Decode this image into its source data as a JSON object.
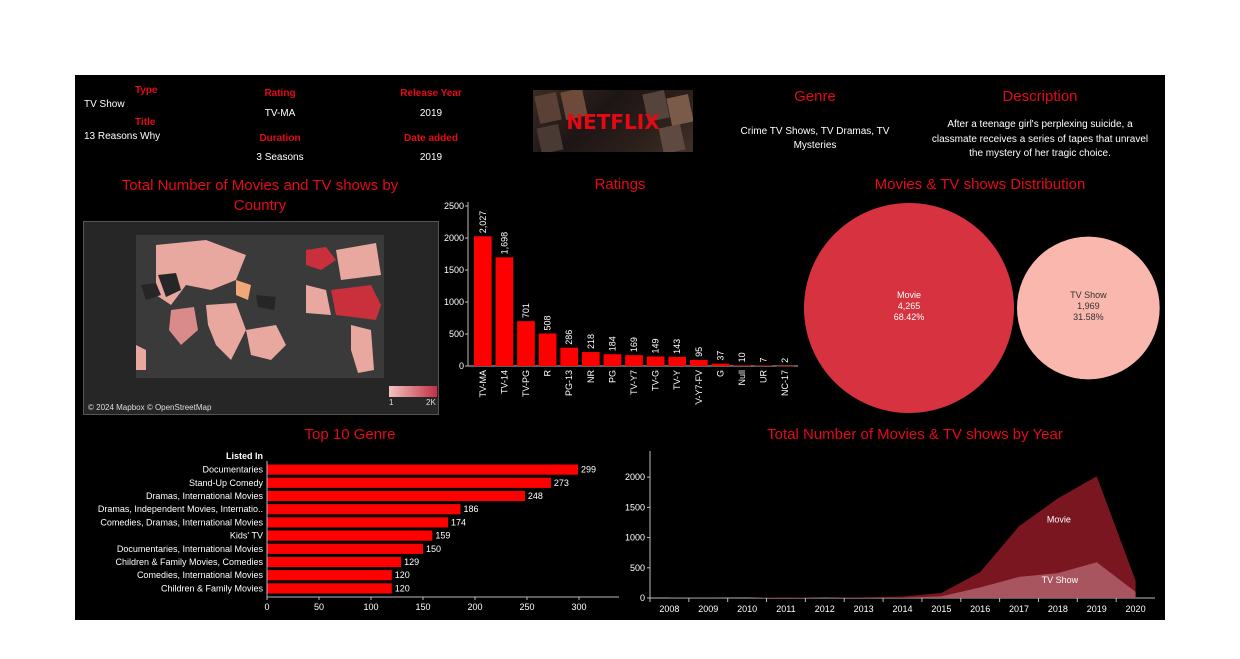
{
  "details": {
    "type_label": "Type",
    "type_value": "TV Show",
    "title_label": "Title",
    "title_value": "13 Reasons Why",
    "rating_label": "Rating",
    "rating_value": "TV-MA",
    "duration_label": "Duration",
    "duration_value": "3 Seasons",
    "release_label": "Release Year",
    "release_value": "2019",
    "date_added_label": "Date added",
    "date_added_value": "2019",
    "logo_text": "NETFLIX",
    "genre_label": "Genre",
    "genre_value": "Crime TV Shows, TV Dramas, TV Mysteries",
    "description_label": "Description",
    "description_value": "After a teenage girl's perplexing suicide, a classmate receives a series of tapes that unravel the mystery of her tragic choice."
  },
  "map": {
    "title": "Total Number of Movies and TV shows by Country",
    "credit": "© 2024 Mapbox © OpenStreetMap",
    "legend_min": "1",
    "legend_max": "2K"
  },
  "colors": {
    "accent": "#e5091a",
    "bar": "#ff0000",
    "movie": "#d7323f",
    "tvshow": "#f9b7ae",
    "movie_area": "#7a1620",
    "tv_area": "#a85560"
  },
  "chart_data": [
    {
      "type": "bar",
      "title": "Ratings",
      "categories": [
        "TV-MA",
        "TV-14",
        "TV-PG",
        "R",
        "PG-13",
        "NR",
        "PG",
        "TV-Y7",
        "TV-G",
        "TV-Y",
        "TV-Y7-FV",
        "G",
        "Null",
        "UR",
        "NC-17"
      ],
      "values": [
        2027,
        1698,
        701,
        508,
        286,
        218,
        184,
        169,
        149,
        143,
        95,
        37,
        10,
        7,
        2
      ],
      "value_labels": [
        "2,027",
        "1,698",
        "701",
        "508",
        "286",
        "218",
        "184",
        "169",
        "149",
        "143",
        "95",
        "37",
        "10",
        "7",
        "2"
      ],
      "ylim": [
        0,
        2500
      ],
      "yticks": [
        0,
        500,
        1000,
        1500,
        2000,
        2500
      ]
    },
    {
      "type": "pie",
      "title": "Movies & TV shows Distribution",
      "series": [
        {
          "name": "Movie",
          "value_label": "4,265",
          "percent_label": "68.42%",
          "value": 4265
        },
        {
          "name": "TV Show",
          "value_label": "1,969",
          "percent_label": "31.58%",
          "value": 1969
        }
      ]
    },
    {
      "type": "bar",
      "title": "Top 10 Genre",
      "ylabel": "Listed In",
      "categories": [
        "Documentaries",
        "Stand-Up Comedy",
        "Dramas, International Movies",
        "Dramas, Independent Movies, Internatio..",
        "Comedies, Dramas, International Movies",
        "Kids' TV",
        "Documentaries, International Movies",
        "Children & Family Movies, Comedies",
        "Comedies, International Movies",
        "Children & Family Movies"
      ],
      "values": [
        299,
        273,
        248,
        186,
        174,
        159,
        150,
        129,
        120,
        120
      ],
      "xlim": [
        0,
        300
      ],
      "xticks": [
        0,
        50,
        100,
        150,
        200,
        250,
        300
      ]
    },
    {
      "type": "area",
      "title": "Total Number of Movies & TV shows by Year",
      "x": [
        "2008",
        "2009",
        "2010",
        "2011",
        "2012",
        "2013",
        "2014",
        "2015",
        "2016",
        "2017",
        "2018",
        "2019",
        "2020"
      ],
      "series": [
        {
          "name": "Movie",
          "values": [
            1,
            2,
            1,
            13,
            3,
            6,
            19,
            56,
            253,
            839,
            1237,
            1424,
            184
          ]
        },
        {
          "name": "TV Show",
          "values": [
            1,
            0,
            0,
            0,
            0,
            5,
            5,
            26,
            176,
            349,
            412,
            592,
            101
          ]
        }
      ],
      "ylim": [
        0,
        2400
      ],
      "yticks": [
        0,
        500,
        1000,
        1500,
        2000
      ]
    }
  ]
}
